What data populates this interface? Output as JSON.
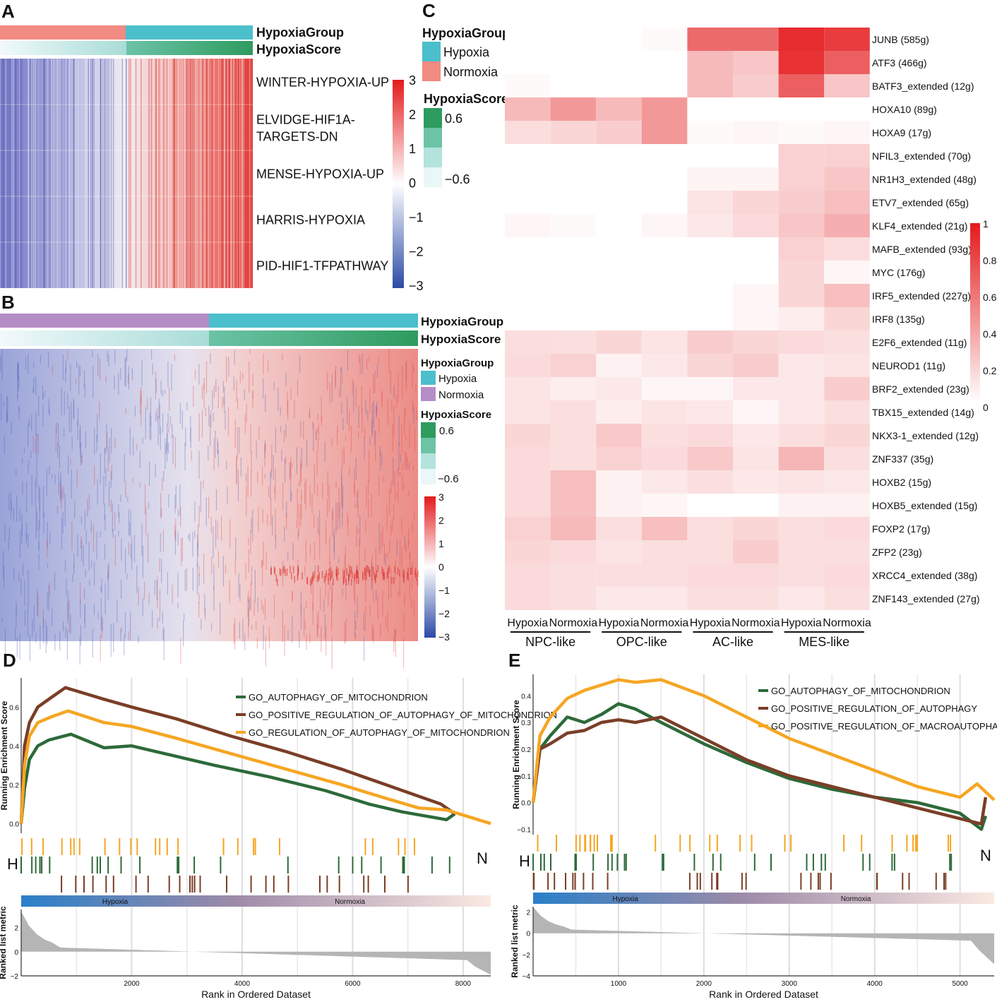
{
  "panel_labels": [
    "A",
    "B",
    "C",
    "D",
    "E"
  ],
  "annotation": {
    "group_title": "HypoxiaGroup",
    "score_title": "HypoxiaScore",
    "hypoxia_label": "Hypoxia",
    "normoxia_label": "Normoxia",
    "score_high": "0.6",
    "score_low": "−0.6",
    "colors": {
      "hypoxia": "#4bbfcb",
      "normoxia_A": "#f28b82",
      "normoxia_B": "#b58dc6",
      "score_high": "#2e9b5f",
      "score_low": "#eaf6f8"
    }
  },
  "chart_data": [
    {
      "id": "A",
      "type": "heatmap",
      "rows": [
        "WINTER-HYPOXIA-UP",
        "ELVIDGE-HIF1A-TARGETS-DN",
        "MENSE-HYPOXIA-UP",
        "HARRIS-HYPOXIA",
        "PID-HIF1-TFPATHWAY"
      ],
      "row_label_lines": [
        [
          "WINTER-HYPOXIA-UP"
        ],
        [
          "ELVIDGE-HIF1A-",
          "TARGETS-DN"
        ],
        [
          "MENSE-HYPOXIA-UP"
        ],
        [
          "HARRIS-HYPOXIA"
        ],
        [
          "PID-HIF1-TFPATHWAY"
        ]
      ],
      "column_groups": [
        "Normoxia",
        "Hypoxia"
      ],
      "group_split_fraction": 0.5,
      "colorscale": {
        "min": -3,
        "max": 3,
        "ticks": [
          "3",
          "2",
          "1",
          "0",
          "−1",
          "−2",
          "−3"
        ]
      }
    },
    {
      "id": "B",
      "type": "heatmap",
      "column_groups": [
        "Normoxia",
        "Hypoxia"
      ],
      "group_split_fraction": 0.5,
      "colorscale": {
        "min": -3,
        "max": 3,
        "ticks": [
          "3",
          "2",
          "1",
          "0",
          "−1",
          "−2",
          "−3"
        ]
      }
    },
    {
      "id": "C",
      "type": "heatmap",
      "rows": [
        "JUNB (585g)",
        "ATF3 (466g)",
        "BATF3_extended (12g)",
        "HOXA10 (89g)",
        "HOXA9 (17g)",
        "NFIL3_extended (70g)",
        "NR1H3_extended (48g)",
        "ETV7_extended (65g)",
        "KLF4_extended (21g)",
        "MAFB_extended (93g)",
        "MYC (176g)",
        "IRF5_extended (227g)",
        "IRF8 (135g)",
        "E2F6_extended (11g)",
        "NEUROD1 (11g)",
        "BRF2_extended (23g)",
        "TBX15_extended (14g)",
        "NKX3-1_extended (12g)",
        "ZNF337 (35g)",
        "HOXB2 (15g)",
        "HOXB5_extended (15g)",
        "FOXP2 (17g)",
        "ZFP2 (23g)",
        "XRCC4_extended (38g)",
        "ZNF143_extended (27g)"
      ],
      "columns": [
        "Hypoxia",
        "Normoxia",
        "Hypoxia",
        "Normoxia",
        "Hypoxia",
        "Normoxia",
        "Hypoxia",
        "Normoxia"
      ],
      "column_groups": [
        "NPC-like",
        "OPC-like",
        "AC-like",
        "MES-like"
      ],
      "values": [
        [
          0.0,
          0.0,
          0.0,
          0.02,
          0.65,
          0.65,
          0.92,
          0.85
        ],
        [
          0.0,
          0.0,
          0.0,
          0.0,
          0.3,
          0.25,
          0.9,
          0.7
        ],
        [
          0.02,
          0.0,
          0.0,
          0.0,
          0.3,
          0.22,
          0.7,
          0.25
        ],
        [
          0.3,
          0.45,
          0.3,
          0.45,
          0.0,
          0.0,
          0.0,
          0.0
        ],
        [
          0.15,
          0.18,
          0.22,
          0.45,
          0.02,
          0.04,
          0.02,
          0.04
        ],
        [
          0.0,
          0.0,
          0.0,
          0.0,
          0.0,
          0.0,
          0.2,
          0.2
        ],
        [
          0.0,
          0.0,
          0.0,
          0.0,
          0.05,
          0.05,
          0.2,
          0.25
        ],
        [
          0.0,
          0.0,
          0.0,
          0.0,
          0.12,
          0.18,
          0.22,
          0.28
        ],
        [
          0.04,
          0.02,
          0.0,
          0.04,
          0.1,
          0.16,
          0.25,
          0.35
        ],
        [
          0.0,
          0.0,
          0.0,
          0.0,
          0.0,
          0.0,
          0.2,
          0.15
        ],
        [
          0.0,
          0.0,
          0.0,
          0.0,
          0.0,
          0.0,
          0.18,
          0.04
        ],
        [
          0.0,
          0.0,
          0.0,
          0.0,
          0.0,
          0.04,
          0.18,
          0.28
        ],
        [
          0.0,
          0.0,
          0.0,
          0.0,
          0.0,
          0.04,
          0.08,
          0.18
        ],
        [
          0.15,
          0.14,
          0.18,
          0.12,
          0.22,
          0.18,
          0.16,
          0.14
        ],
        [
          0.16,
          0.2,
          0.06,
          0.1,
          0.18,
          0.22,
          0.1,
          0.12
        ],
        [
          0.12,
          0.08,
          0.1,
          0.04,
          0.04,
          0.1,
          0.1,
          0.22
        ],
        [
          0.12,
          0.14,
          0.08,
          0.12,
          0.1,
          0.04,
          0.1,
          0.14
        ],
        [
          0.18,
          0.14,
          0.24,
          0.14,
          0.16,
          0.1,
          0.14,
          0.18
        ],
        [
          0.16,
          0.14,
          0.2,
          0.16,
          0.24,
          0.12,
          0.32,
          0.14
        ],
        [
          0.16,
          0.28,
          0.06,
          0.1,
          0.14,
          0.1,
          0.12,
          0.1
        ],
        [
          0.16,
          0.28,
          0.06,
          0.04,
          0.0,
          0.0,
          0.06,
          0.06
        ],
        [
          0.2,
          0.3,
          0.14,
          0.28,
          0.14,
          0.18,
          0.14,
          0.16
        ],
        [
          0.18,
          0.16,
          0.12,
          0.14,
          0.14,
          0.22,
          0.14,
          0.14
        ],
        [
          0.16,
          0.14,
          0.14,
          0.14,
          0.16,
          0.16,
          0.14,
          0.16
        ],
        [
          0.16,
          0.14,
          0.1,
          0.1,
          0.14,
          0.14,
          0.1,
          0.14
        ]
      ],
      "colorscale": {
        "min": 0,
        "max": 1,
        "ticks": [
          "1",
          "0.8",
          "0.6",
          "0.4",
          "0.2",
          "0"
        ]
      }
    },
    {
      "id": "D",
      "type": "line",
      "title": "",
      "xlabel": "Rank in Ordered Dataset",
      "ylabel": "Running Enrichment Score",
      "ylabel2": "Ranked list metric",
      "xlim": [
        0,
        8500
      ],
      "ylim": [
        -0.05,
        0.75
      ],
      "xticks": [
        2000,
        4000,
        6000,
        8000
      ],
      "xtick_labels": [
        "2000",
        "4000",
        "6000",
        "8000"
      ],
      "yticks": [
        0.0,
        0.2,
        0.4,
        0.6
      ],
      "ytick_labels": [
        "0.0",
        "0.2",
        "0.4",
        "0.6"
      ],
      "y2_lim": [
        -2,
        3.5
      ],
      "y2ticks": [
        -2,
        0,
        2
      ],
      "y2tick_labels": [
        "−2",
        "0",
        "2"
      ],
      "bar_labels": [
        "Hypoxia",
        "Normoxia"
      ],
      "end_labels": [
        "H",
        "N"
      ],
      "series": [
        {
          "name": "GO_AUTOPHAGY_OF_MITOCHONDRION",
          "color": "#2d6a3a",
          "x": [
            0,
            60,
            150,
            300,
            500,
            900,
            1500,
            2000,
            2600,
            3500,
            4500,
            5500,
            6300,
            6900,
            7300,
            7700,
            7850
          ],
          "y": [
            0.0,
            0.18,
            0.33,
            0.4,
            0.43,
            0.46,
            0.39,
            0.4,
            0.36,
            0.3,
            0.24,
            0.17,
            0.1,
            0.06,
            0.04,
            0.02,
            0.05
          ]
        },
        {
          "name": "GO_POSITIVE_REGULATION_OF_AUTOPHAGY_OF_MITOCHONDRION",
          "color": "#7a3e27",
          "x": [
            0,
            60,
            150,
            300,
            550,
            800,
            1500,
            2000,
            2800,
            3800,
            4800,
            5800,
            6600,
            7200,
            7600,
            7850
          ],
          "y": [
            0.0,
            0.4,
            0.52,
            0.6,
            0.65,
            0.7,
            0.64,
            0.6,
            0.54,
            0.45,
            0.37,
            0.28,
            0.2,
            0.14,
            0.1,
            0.05
          ]
        },
        {
          "name": "GO_REGULATION_OF_AUTOPHAGY_OF_MITOCHONDRION",
          "color": "#f5a623",
          "x": [
            0,
            60,
            150,
            300,
            550,
            850,
            1500,
            2000,
            2800,
            3800,
            4800,
            5800,
            6600,
            7200,
            7700,
            8500
          ],
          "y": [
            0.0,
            0.3,
            0.45,
            0.52,
            0.55,
            0.58,
            0.52,
            0.5,
            0.44,
            0.36,
            0.28,
            0.2,
            0.13,
            0.08,
            0.07,
            0.0
          ]
        }
      ]
    },
    {
      "id": "E",
      "type": "line",
      "title": "",
      "xlabel": "Rank in Ordered Dataset",
      "ylabel": "Running Enrichment Score",
      "ylabel2": "Ranked list metric",
      "xlim": [
        0,
        5400
      ],
      "ylim": [
        -0.12,
        0.48
      ],
      "xticks": [
        1000,
        2000,
        3000,
        4000,
        5000
      ],
      "xtick_labels": [
        "1000",
        "2000",
        "3000",
        "4000",
        "5000"
      ],
      "yticks": [
        -0.1,
        0.0,
        0.1,
        0.2,
        0.3,
        0.4
      ],
      "ytick_labels": [
        "−0.1",
        "0.0",
        "0.1",
        "0.2",
        "0.3",
        "0.4"
      ],
      "y2_lim": [
        -4,
        2.5
      ],
      "y2ticks": [
        -4,
        -2,
        0,
        2
      ],
      "y2tick_labels": [
        "−4",
        "−2",
        "0",
        "2"
      ],
      "bar_labels": [
        "Hypoxia",
        "Normoxia"
      ],
      "end_labels": [
        "H",
        "N"
      ],
      "series": [
        {
          "name": "GO_AUTOPHAGY_OF_MITOCHONDRION",
          "color": "#2d6a3a",
          "x": [
            0,
            80,
            200,
            400,
            600,
            800,
            1000,
            1200,
            1500,
            2000,
            2500,
            3000,
            3500,
            4000,
            4500,
            5000,
            5250,
            5300
          ],
          "y": [
            0.0,
            0.2,
            0.25,
            0.32,
            0.3,
            0.33,
            0.37,
            0.35,
            0.3,
            0.22,
            0.15,
            0.09,
            0.05,
            0.02,
            0.0,
            -0.04,
            -0.1,
            -0.05
          ]
        },
        {
          "name": "GO_POSITIVE_REGULATION_OF_AUTOPHAGY",
          "color": "#7a3e27",
          "x": [
            0,
            80,
            200,
            400,
            600,
            800,
            1000,
            1200,
            1500,
            2000,
            2500,
            3000,
            3500,
            4000,
            4500,
            5000,
            5250,
            5300
          ],
          "y": [
            0.0,
            0.2,
            0.22,
            0.26,
            0.27,
            0.3,
            0.31,
            0.3,
            0.32,
            0.24,
            0.16,
            0.1,
            0.06,
            0.02,
            -0.02,
            -0.06,
            -0.08,
            0.02
          ]
        },
        {
          "name": "GO_POSITIVE_REGULATION_OF_MACROAUTOPHAGY",
          "color": "#f5a623",
          "x": [
            0,
            80,
            200,
            400,
            600,
            800,
            1000,
            1200,
            1500,
            2000,
            2500,
            3000,
            3500,
            4000,
            4500,
            5000,
            5200,
            5400
          ],
          "y": [
            0.0,
            0.25,
            0.32,
            0.39,
            0.42,
            0.44,
            0.46,
            0.45,
            0.46,
            0.4,
            0.32,
            0.24,
            0.18,
            0.12,
            0.06,
            0.02,
            0.07,
            0.01
          ]
        }
      ]
    }
  ]
}
